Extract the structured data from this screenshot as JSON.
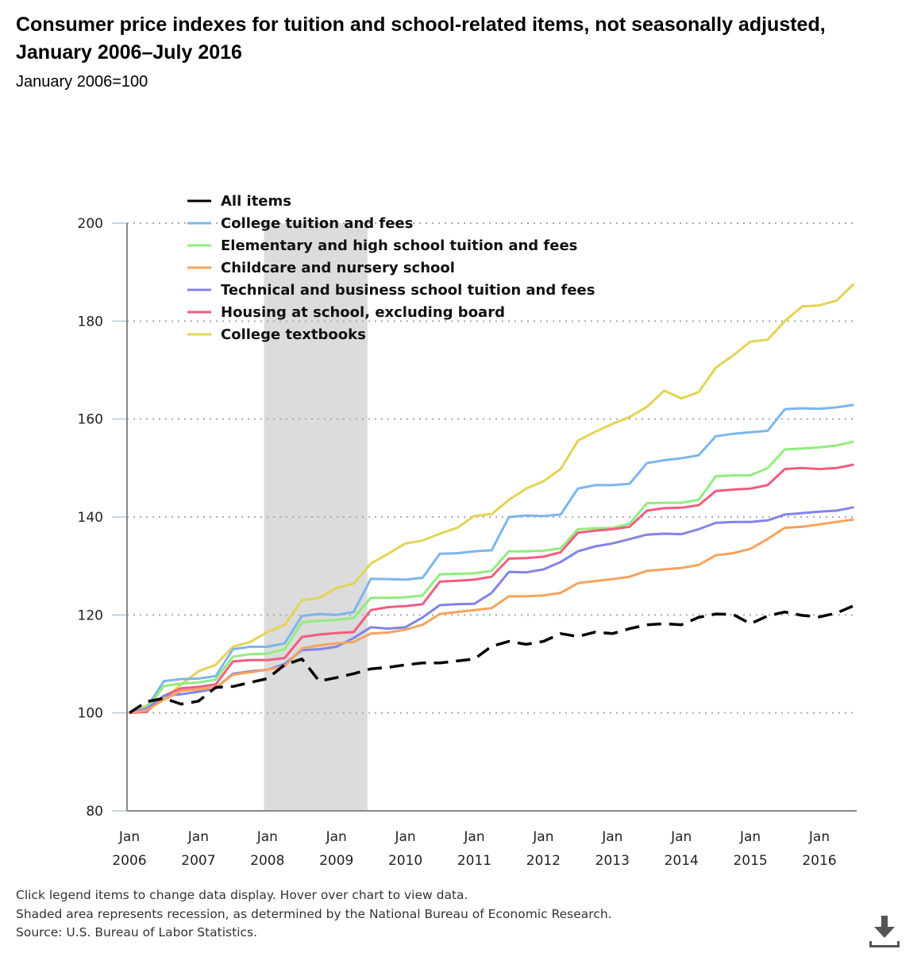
{
  "header": {
    "title": "Consumer price indexes for tuition and school-related items, not seasonally adjusted, January 2006–July 2016",
    "subtitle": "January 2006=100"
  },
  "notes": [
    "Click legend items to change data display. Hover over chart to view data.",
    "Shaded area represents recession, as determined by the National Bureau of Economic Research.",
    "Source: U.S. Bureau of Labor Statistics."
  ],
  "download": {
    "icon": "download-icon"
  },
  "chart_data": {
    "type": "line",
    "title": "Consumer price indexes for tuition and school-related items, not seasonally adjusted, January 2006–July 2016",
    "subtitle": "January 2006=100",
    "xlabel": "",
    "ylabel": "",
    "ylim": [
      80,
      200
    ],
    "yticks": [
      80,
      100,
      120,
      140,
      160,
      180,
      200
    ],
    "xticks": [
      {
        "line1": "Jan",
        "line2": "2006",
        "month_index": 0
      },
      {
        "line1": "Jan",
        "line2": "2007",
        "month_index": 12
      },
      {
        "line1": "Jan",
        "line2": "2008",
        "month_index": 24
      },
      {
        "line1": "Jan",
        "line2": "2009",
        "month_index": 36
      },
      {
        "line1": "Jan",
        "line2": "2010",
        "month_index": 48
      },
      {
        "line1": "Jan",
        "line2": "2011",
        "month_index": 60
      },
      {
        "line1": "Jan",
        "line2": "2012",
        "month_index": 72
      },
      {
        "line1": "Jan",
        "line2": "2013",
        "month_index": 84
      },
      {
        "line1": "Jan",
        "line2": "2014",
        "month_index": 96
      },
      {
        "line1": "Jan",
        "line2": "2015",
        "month_index": 108
      },
      {
        "line1": "Jan",
        "line2": "2016",
        "month_index": 120
      }
    ],
    "x_range_months": [
      0,
      127
    ],
    "x": [
      "Jan 2006",
      "Apr 2006",
      "Jul 2006",
      "Oct 2006",
      "Jan 2007",
      "Apr 2007",
      "Jul 2007",
      "Oct 2007",
      "Jan 2008",
      "Apr 2008",
      "Jul 2008",
      "Oct 2008",
      "Jan 2009",
      "Apr 2009",
      "Jul 2009",
      "Oct 2009",
      "Jan 2010",
      "Apr 2010",
      "Jul 2010",
      "Oct 2010",
      "Jan 2011",
      "Apr 2011",
      "Jul 2011",
      "Oct 2011",
      "Jan 2012",
      "Apr 2012",
      "Jul 2012",
      "Oct 2012",
      "Jan 2013",
      "Apr 2013",
      "Jul 2013",
      "Oct 2013",
      "Jan 2014",
      "Apr 2014",
      "Jul 2014",
      "Oct 2014",
      "Jan 2015",
      "Apr 2015",
      "Jul 2015",
      "Oct 2015",
      "Jan 2016",
      "Apr 2016",
      "Jul 2016"
    ],
    "x_month_index": [
      0,
      3,
      6,
      9,
      12,
      15,
      18,
      21,
      24,
      27,
      30,
      33,
      36,
      39,
      42,
      45,
      48,
      51,
      54,
      57,
      60,
      63,
      66,
      69,
      72,
      75,
      78,
      81,
      84,
      87,
      90,
      93,
      96,
      99,
      102,
      105,
      108,
      111,
      114,
      117,
      120,
      123,
      126
    ],
    "recession": {
      "start": "Dec 2007",
      "end": "Jun 2009",
      "start_month_index": 23,
      "end_month_index": 41
    },
    "grid": "horizontal-dotted",
    "legend_position": "top-left",
    "series": [
      {
        "name": "All items",
        "color": "#000000",
        "dashed": true,
        "values": [
          100.0,
          102.3,
          103.0,
          101.8,
          102.4,
          105.2,
          105.4,
          106.2,
          107.0,
          109.8,
          111.0,
          106.5,
          107.2,
          108.0,
          109.0,
          109.3,
          109.8,
          110.2,
          110.2,
          110.6,
          111.0,
          113.6,
          114.6,
          114.0,
          114.6,
          116.2,
          115.6,
          116.5,
          116.2,
          117.2,
          118.0,
          118.2,
          118.0,
          119.5,
          120.2,
          120.1,
          118.2,
          119.8,
          120.6,
          119.9,
          119.6,
          120.4,
          121.9
        ]
      },
      {
        "name": "College tuition and fees",
        "color": "#7cb5ec",
        "values": [
          100.0,
          101.0,
          106.5,
          106.9,
          107.0,
          107.5,
          113.0,
          113.5,
          113.5,
          114.2,
          119.8,
          120.2,
          120.0,
          120.6,
          127.4,
          127.3,
          127.2,
          127.6,
          132.5,
          132.6,
          133.0,
          133.2,
          140.0,
          140.3,
          140.2,
          140.5,
          145.8,
          146.5,
          146.5,
          146.8,
          151.0,
          151.6,
          152.0,
          152.6,
          156.5,
          157.0,
          157.3,
          157.6,
          162.0,
          162.2,
          162.1,
          162.4,
          162.9
        ]
      },
      {
        "name": "Elementary and high school tuition and fees",
        "color": "#90ed7d",
        "values": [
          100.0,
          100.8,
          105.5,
          106.0,
          106.2,
          106.8,
          111.5,
          112.0,
          112.1,
          113.0,
          118.5,
          118.8,
          119.0,
          119.4,
          123.5,
          123.5,
          123.6,
          124.0,
          128.3,
          128.4,
          128.5,
          129.0,
          133.0,
          133.0,
          133.1,
          133.6,
          137.5,
          137.7,
          137.8,
          138.6,
          142.8,
          142.9,
          142.9,
          143.5,
          148.3,
          148.5,
          148.5,
          150.0,
          153.8,
          154.0,
          154.2,
          154.6,
          155.4
        ]
      },
      {
        "name": "Childcare and nursery school",
        "color": "#f7a35c",
        "values": [
          100.0,
          100.5,
          102.7,
          104.5,
          104.8,
          105.2,
          107.8,
          108.3,
          108.8,
          109.5,
          113.2,
          113.8,
          114.2,
          114.5,
          116.2,
          116.4,
          117.0,
          118.0,
          120.2,
          120.6,
          121.0,
          121.4,
          123.8,
          123.8,
          124.0,
          124.5,
          126.5,
          126.9,
          127.3,
          127.8,
          129.0,
          129.3,
          129.6,
          130.2,
          132.2,
          132.6,
          133.5,
          135.5,
          137.8,
          138.0,
          138.5,
          139.0,
          139.5
        ]
      },
      {
        "name": "Technical and business school tuition and fees",
        "color": "#8085e9",
        "values": [
          100.0,
          100.8,
          103.5,
          103.8,
          104.3,
          105.0,
          108.0,
          108.5,
          108.8,
          110.0,
          112.8,
          113.0,
          113.5,
          115.3,
          117.5,
          117.2,
          117.5,
          119.5,
          122.0,
          122.2,
          122.3,
          124.5,
          128.8,
          128.7,
          129.3,
          130.8,
          133.0,
          134.0,
          134.6,
          135.5,
          136.4,
          136.6,
          136.5,
          137.5,
          138.8,
          139.0,
          139.0,
          139.3,
          140.5,
          140.8,
          141.1,
          141.3,
          142.0
        ]
      },
      {
        "name": "Housing at school, excluding board",
        "color": "#f15c80",
        "values": [
          100.0,
          100.2,
          103.5,
          105.0,
          105.3,
          105.8,
          110.5,
          110.8,
          110.8,
          111.2,
          115.5,
          116.0,
          116.3,
          116.5,
          121.0,
          121.6,
          121.8,
          122.2,
          126.8,
          127.0,
          127.2,
          127.8,
          131.5,
          131.6,
          131.9,
          132.8,
          136.8,
          137.2,
          137.5,
          138.0,
          141.3,
          141.8,
          141.9,
          142.4,
          145.3,
          145.6,
          145.8,
          146.5,
          149.8,
          150.0,
          149.8,
          150.0,
          150.7
        ]
      },
      {
        "name": "College textbooks",
        "color": "#e4d354",
        "values": [
          100.0,
          101.5,
          102.8,
          105.8,
          108.5,
          109.8,
          113.5,
          114.5,
          116.5,
          118.0,
          123.0,
          123.5,
          125.5,
          126.4,
          130.5,
          132.5,
          134.6,
          135.2,
          136.6,
          137.8,
          140.2,
          140.6,
          143.5,
          145.8,
          147.3,
          149.8,
          155.6,
          157.4,
          159.0,
          160.4,
          162.5,
          165.8,
          164.2,
          165.5,
          170.5,
          173.0,
          175.8,
          176.2,
          180.0,
          183.0,
          183.2,
          184.2,
          187.6
        ]
      }
    ]
  }
}
